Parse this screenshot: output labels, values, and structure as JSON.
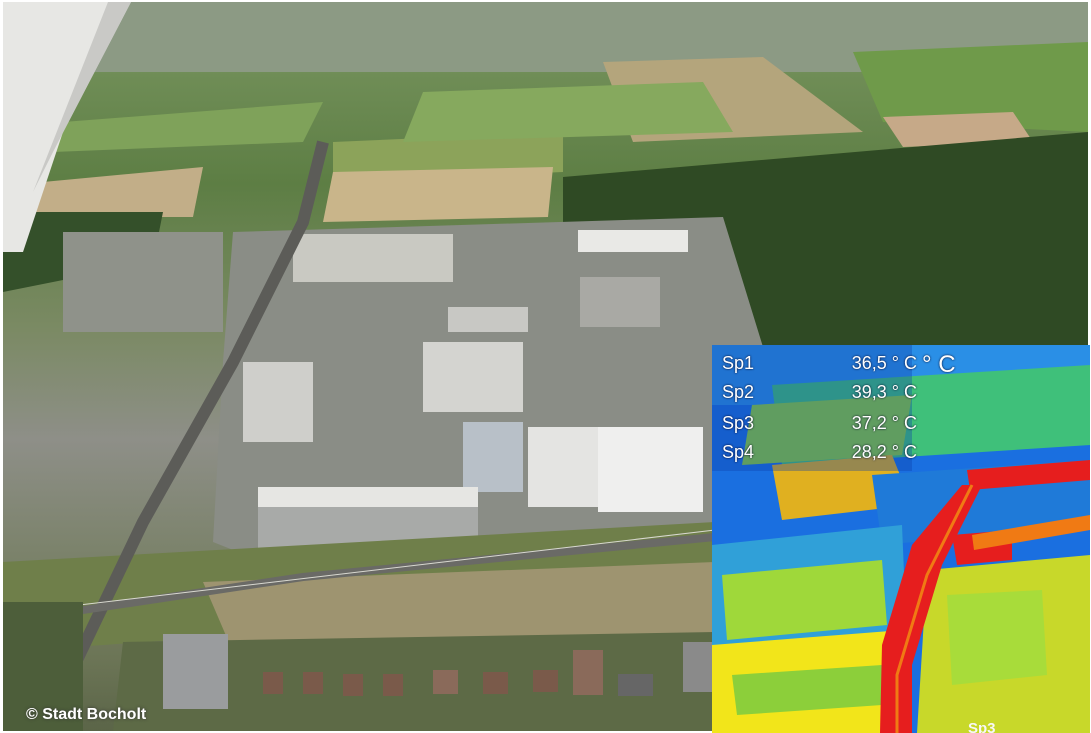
{
  "copyright": "© Stadt Bocholt",
  "thermal": {
    "unit": "° C",
    "spots": [
      {
        "name": "Sp1",
        "value": "36,5 ° C"
      },
      {
        "name": "Sp2",
        "value": "39,3 ° C"
      },
      {
        "name": "Sp3",
        "value": "37,2 ° C"
      },
      {
        "name": "Sp4",
        "value": "28,2 ° C"
      }
    ],
    "marker_label": "Sp3",
    "palette": {
      "cold": "#1a5fd8",
      "cool": "#22b6e0",
      "mid": "#3fd36a",
      "warm": "#f2e51a",
      "hot": "#f07a14",
      "hottest": "#e61e1e"
    }
  }
}
